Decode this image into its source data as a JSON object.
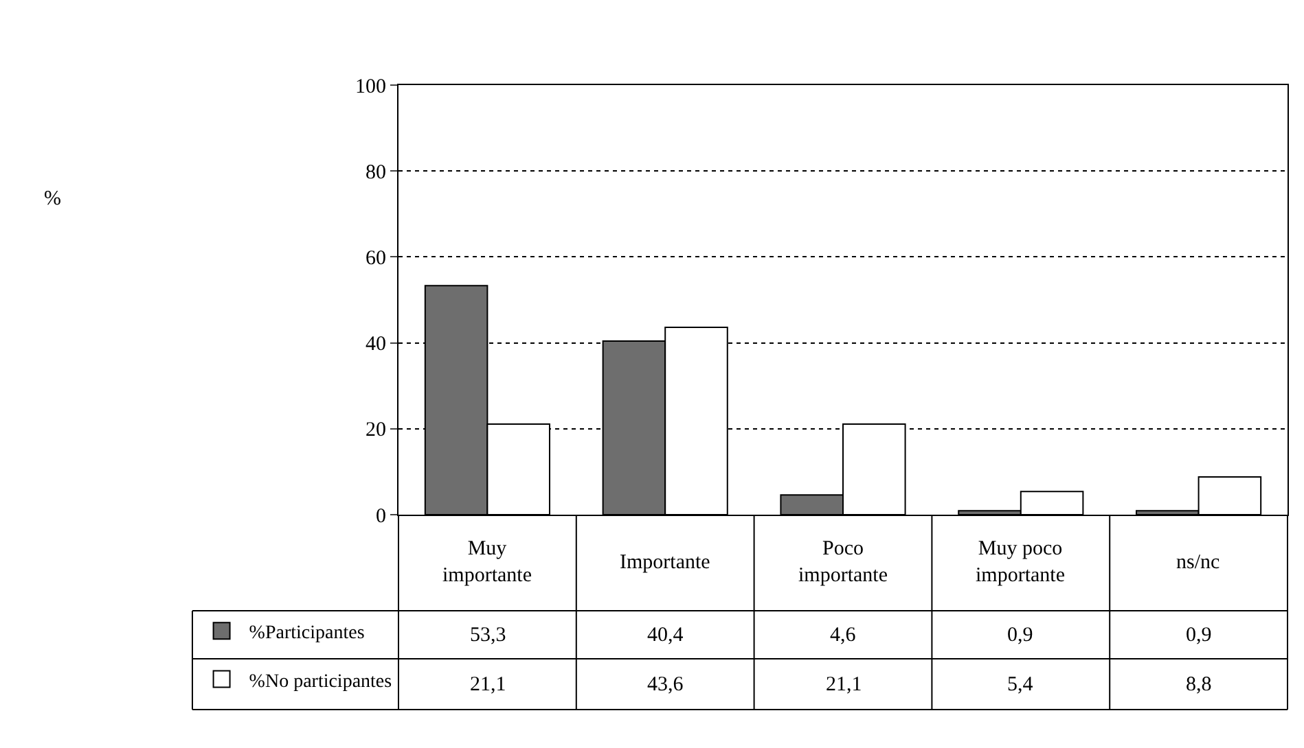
{
  "chart_data": {
    "type": "bar",
    "annotations": [
      "%"
    ],
    "categories": [
      "Muy importante",
      "Importante",
      "Poco importante",
      "Muy poco importante",
      "ns/nc"
    ],
    "series": [
      {
        "name": "%Participantes",
        "color": "#6e6e6e",
        "values": [
          53.3,
          40.4,
          4.6,
          0.9,
          0.9
        ],
        "value_labels": [
          "53,3",
          "40,4",
          "4,6",
          "0,9",
          "0,9"
        ]
      },
      {
        "name": "%No participantes",
        "color": "#ffffff",
        "values": [
          21.1,
          43.6,
          21.1,
          5.4,
          8.8
        ],
        "value_labels": [
          "21,1",
          "43,6",
          "21,1",
          "5,4",
          "8,8"
        ]
      }
    ],
    "ylim": [
      0,
      100
    ],
    "yticks": [
      0,
      20,
      40,
      60,
      80,
      100
    ],
    "grid": "y",
    "legend": "bottom left"
  }
}
